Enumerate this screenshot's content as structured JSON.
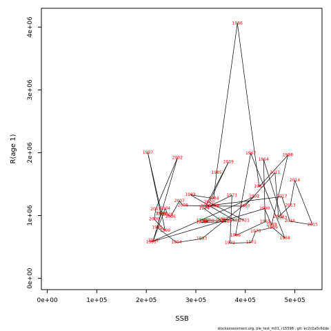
{
  "chart_data": {
    "type": "line",
    "xlabel": "SSB",
    "ylabel": "R(age 1)",
    "xlim": [
      -12000,
      555000
    ],
    "ylim": [
      -180000,
      4300000
    ],
    "x_ticks": [
      0,
      100000,
      200000,
      300000,
      400000,
      500000
    ],
    "x_tick_labels": [
      "0e+00",
      "1e+05",
      "2e+05",
      "3e+05",
      "4e+05",
      "5e+05"
    ],
    "y_ticks": [
      0,
      1000000,
      2000000,
      3000000,
      4000000
    ],
    "y_tick_labels": [
      "0e+00",
      "1e+06",
      "2e+06",
      "3e+06",
      "4e+06"
    ],
    "grid": false,
    "series": [
      {
        "points": [
          {
            "year": "1963",
            "x": 474000,
            "y": 960000
          },
          {
            "year": "1964",
            "x": 437000,
            "y": 1890000
          },
          {
            "year": "1965",
            "x": 440000,
            "y": 900000
          },
          {
            "year": "1966",
            "x": 380000,
            "y": 680000
          },
          {
            "year": "1967",
            "x": 411000,
            "y": 1990000
          },
          {
            "year": "1968",
            "x": 480000,
            "y": 640000
          },
          {
            "year": "1969",
            "x": 455000,
            "y": 810000
          },
          {
            "year": "1970",
            "x": 421000,
            "y": 750000
          },
          {
            "year": "1971",
            "x": 412000,
            "y": 570000
          },
          {
            "year": "1972",
            "x": 369000,
            "y": 560000
          },
          {
            "year": "1973",
            "x": 373000,
            "y": 1320000
          },
          {
            "year": "1974",
            "x": 317000,
            "y": 1110000
          },
          {
            "year": "1975",
            "x": 351000,
            "y": 920000
          },
          {
            "year": "1976",
            "x": 312000,
            "y": 920000
          },
          {
            "year": "1977",
            "x": 318000,
            "y": 920000
          },
          {
            "year": "1978",
            "x": 326000,
            "y": 910000
          },
          {
            "year": "1979",
            "x": 311000,
            "y": 890000
          },
          {
            "year": "1980",
            "x": 362000,
            "y": 900000
          },
          {
            "year": "1981",
            "x": 355000,
            "y": 940000
          },
          {
            "year": "1982",
            "x": 379000,
            "y": 920000
          },
          {
            "year": "1983",
            "x": 289000,
            "y": 1330000
          },
          {
            "year": "1984",
            "x": 336000,
            "y": 1270000
          },
          {
            "year": "1985",
            "x": 342000,
            "y": 1680000
          },
          {
            "year": "1986",
            "x": 384000,
            "y": 4060000
          },
          {
            "year": "1987",
            "x": 428000,
            "y": 1460000
          },
          {
            "year": "1988",
            "x": 486000,
            "y": 1960000
          },
          {
            "year": "1989",
            "x": 453000,
            "y": 850000
          },
          {
            "year": "1990",
            "x": 439000,
            "y": 1110000
          },
          {
            "year": "1991",
            "x": 210000,
            "y": 580000
          },
          {
            "year": "1992",
            "x": 418000,
            "y": 1300000
          },
          {
            "year": "1993",
            "x": 312000,
            "y": 630000
          },
          {
            "year": "1994",
            "x": 261000,
            "y": 570000
          },
          {
            "year": "1995",
            "x": 222000,
            "y": 810000
          },
          {
            "year": "1996",
            "x": 229000,
            "y": 1030000
          },
          {
            "year": "1997",
            "x": 203000,
            "y": 2000000
          },
          {
            "year": "1998",
            "x": 231000,
            "y": 1030000
          },
          {
            "year": "1999",
            "x": 238000,
            "y": 760000
          },
          {
            "year": "2000",
            "x": 216000,
            "y": 940000
          },
          {
            "year": "2001",
            "x": 219000,
            "y": 1100000
          },
          {
            "year": "2002",
            "x": 263000,
            "y": 1920000
          },
          {
            "year": "2003",
            "x": 214000,
            "y": 600000
          },
          {
            "year": "2004",
            "x": 238000,
            "y": 1110000
          },
          {
            "year": "2005",
            "x": 244000,
            "y": 1010000
          },
          {
            "year": "2006",
            "x": 249000,
            "y": 980000
          },
          {
            "year": "2007",
            "x": 267000,
            "y": 1230000
          },
          {
            "year": "2008",
            "x": 274000,
            "y": 1160000
          },
          {
            "year": "2009",
            "x": 336000,
            "y": 1150000
          },
          {
            "year": "2010",
            "x": 399000,
            "y": 1150000
          },
          {
            "year": "2011",
            "x": 460000,
            "y": 1680000
          },
          {
            "year": "2012",
            "x": 467000,
            "y": 980000
          },
          {
            "year": "2013",
            "x": 491000,
            "y": 1160000
          },
          {
            "year": "2014",
            "x": 500000,
            "y": 1560000
          },
          {
            "year": "2015",
            "x": 536000,
            "y": 850000
          },
          {
            "year": "2016",
            "x": 490000,
            "y": 910000
          },
          {
            "year": "2017",
            "x": 474000,
            "y": 1300000
          },
          {
            "year": "2018",
            "x": 320000,
            "y": 1150000
          },
          {
            "year": "2019",
            "x": 366000,
            "y": 1850000
          },
          {
            "year": "2020",
            "x": 327000,
            "y": 1210000
          },
          {
            "year": "2021",
            "x": 398000,
            "y": 920000
          }
        ]
      }
    ]
  },
  "footer_text": "stockassessment.org, ple_test_m01, r15598 , git: ec2c2a0c6dde"
}
